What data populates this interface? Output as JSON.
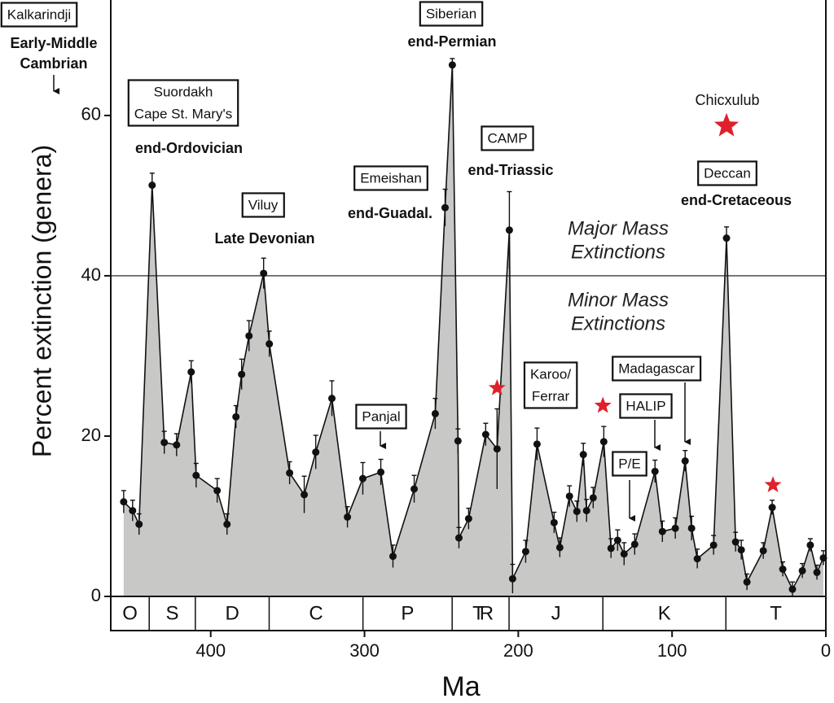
{
  "chart_data": {
    "type": "area",
    "x_label": "Ma",
    "y_label": "Percent extinction (genera)",
    "xlim": [
      465,
      0
    ],
    "ylim": [
      0,
      74
    ],
    "xticks": [
      400,
      300,
      200,
      100,
      0
    ],
    "yticks": [
      0,
      20,
      40,
      60
    ],
    "fill_color": "#c8c9c7",
    "line_color": "#111111",
    "x": [
      456.6,
      450.8,
      446.6,
      438.1,
      430.2,
      422.2,
      412.7,
      409.5,
      395.8,
      389.4,
      383.6,
      379.9,
      375.1,
      365.6,
      361.9,
      348.7,
      339.2,
      331.7,
      321.2,
      311.1,
      301.1,
      289.4,
      281.5,
      267.7,
      254.0,
      247.6,
      242.9,
      239.2,
      238.6,
      232.3,
      221.2,
      213.8,
      205.8,
      203.7,
      195.2,
      187.8,
      176.7,
      173.0,
      166.7,
      161.9,
      157.7,
      155.6,
      151.3,
      144.4,
      139.7,
      135.4,
      131.2,
      124.3,
      111.1,
      106.3,
      97.9,
      91.5,
      87.3,
      83.6,
      73.0,
      64.6,
      58.7,
      55.0,
      51.3,
      40.7,
      34.9,
      28.0,
      21.7,
      15.3,
      10.1,
      5.8,
      1.6
    ],
    "values": [
      11.8,
      10.7,
      9.0,
      51.3,
      19.2,
      18.9,
      28.0,
      15.1,
      13.2,
      9.0,
      22.4,
      27.7,
      32.5,
      40.3,
      31.5,
      15.4,
      12.7,
      18.0,
      24.7,
      9.9,
      14.7,
      15.5,
      5.0,
      13.4,
      22.8,
      48.5,
      66.3,
      19.4,
      7.3,
      9.7,
      20.2,
      18.4,
      45.7,
      2.2,
      5.6,
      19.0,
      9.2,
      6.1,
      12.5,
      10.6,
      17.7,
      10.7,
      12.3,
      19.3,
      6.0,
      7.0,
      5.3,
      6.5,
      15.6,
      8.1,
      8.5,
      16.9,
      8.5,
      4.7,
      6.4,
      44.7,
      6.8,
      5.8,
      1.8,
      5.7,
      11.1,
      3.4,
      0.9,
      3.2,
      6.4,
      3.0,
      4.8
    ],
    "errors": [
      1.4,
      1.3,
      1.3,
      1.5,
      1.4,
      1.4,
      1.4,
      1.5,
      1.5,
      1.3,
      1.4,
      1.9,
      1.9,
      1.9,
      1.6,
      1.4,
      2.3,
      2.1,
      2.2,
      1.3,
      2.0,
      1.6,
      1.4,
      1.7,
      1.9,
      2.3,
      0.8,
      1.5,
      1.3,
      1.3,
      1.4,
      5.0,
      4.8,
      1.8,
      1.4,
      2.0,
      1.3,
      1.2,
      1.3,
      1.3,
      1.4,
      1.4,
      1.3,
      1.9,
      1.2,
      1.3,
      1.4,
      1.3,
      1.4,
      1.3,
      1.3,
      1.3,
      1.5,
      1.2,
      1.2,
      1.4,
      1.2,
      1.2,
      1.0,
      1.0,
      0.9,
      0.9,
      0.9,
      0.9,
      0.8,
      0.9,
      0.9
    ],
    "threshold": 40,
    "threshold_labels": [
      {
        "lines": [
          "Major Mass",
          "Extinctions"
        ]
      },
      {
        "lines": [
          "Minor Mass",
          "Extinctions"
        ]
      }
    ],
    "periods": {
      "labels": [
        "O",
        "S",
        "D",
        "C",
        "P",
        "TR",
        "J",
        "K",
        "T"
      ],
      "boundaries": [
        440,
        410,
        362,
        301,
        243,
        206,
        145,
        65
      ]
    },
    "impacts": {
      "color": "#e0202a",
      "x": [
        213.8,
        145.0,
        34.4,
        64.6
      ],
      "y": [
        26.0,
        23.8,
        13.9,
        58.7
      ]
    },
    "annotations": [
      {
        "lines": [
          "Kalkarindji"
        ],
        "style": "box"
      },
      {
        "lines": [
          "Early-Middle",
          "Cambrian"
        ],
        "style": "bold"
      },
      {
        "lines": [
          "Suordakh",
          "Cape St. Mary's"
        ],
        "style": "box"
      },
      {
        "lines": [
          "end-Ordovician"
        ],
        "style": "bold"
      },
      {
        "lines": [
          "Viluy"
        ],
        "style": "box"
      },
      {
        "lines": [
          "Late Devonian"
        ],
        "style": "bold"
      },
      {
        "lines": [
          "Emeishan"
        ],
        "style": "box"
      },
      {
        "lines": [
          "end-Guadal."
        ],
        "style": "bold"
      },
      {
        "lines": [
          "Siberian"
        ],
        "style": "box"
      },
      {
        "lines": [
          "end-Permian"
        ],
        "style": "bold"
      },
      {
        "lines": [
          "CAMP"
        ],
        "style": "box"
      },
      {
        "lines": [
          "end-Triassic"
        ],
        "style": "bold"
      },
      {
        "lines": [
          "Chicxulub"
        ],
        "style": "plain"
      },
      {
        "lines": [
          "Deccan"
        ],
        "style": "box"
      },
      {
        "lines": [
          "end-Cretaceous"
        ],
        "style": "bold"
      },
      {
        "lines": [
          "Panjal"
        ],
        "style": "box"
      },
      {
        "lines": [
          "Karoo/",
          "Ferrar"
        ],
        "style": "box"
      },
      {
        "lines": [
          "Madagascar"
        ],
        "style": "box"
      },
      {
        "lines": [
          "HALIP"
        ],
        "style": "box"
      },
      {
        "lines": [
          "P/E"
        ],
        "style": "box"
      }
    ]
  }
}
